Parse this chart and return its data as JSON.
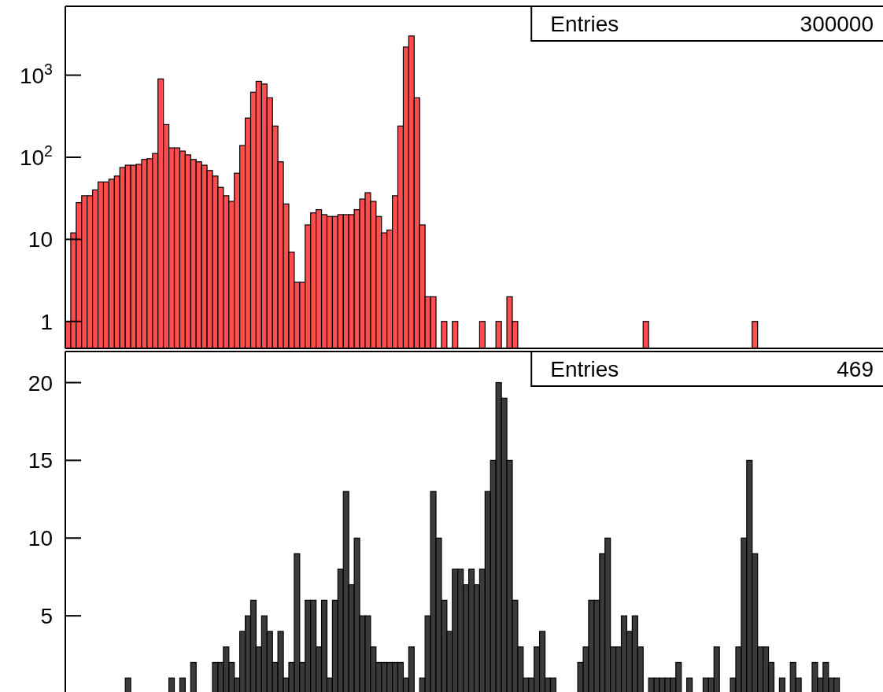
{
  "chart_data": [
    {
      "type": "bar",
      "log": "y",
      "tick_labels": "y",
      "color": "#ff4d4d",
      "categories": [
        null,
        null,
        null,
        null,
        null,
        null,
        null,
        null,
        null,
        null,
        null,
        null,
        null,
        null,
        null,
        null,
        null,
        null,
        null,
        null,
        null,
        null,
        null,
        null,
        null,
        null,
        null,
        null,
        null,
        null,
        null,
        null,
        null,
        null,
        null,
        null,
        null,
        null,
        null,
        null,
        null,
        null,
        null,
        null,
        null,
        null,
        null,
        null,
        null,
        null,
        null,
        null,
        null,
        null,
        null,
        null,
        null,
        null,
        null,
        null,
        null,
        null,
        null,
        null,
        null,
        null,
        null,
        null,
        null,
        null,
        null,
        null,
        null,
        null,
        null,
        null,
        null,
        null,
        null,
        null,
        null,
        null,
        null,
        null,
        null,
        null,
        null,
        null,
        null,
        null,
        null,
        null,
        null,
        null,
        null,
        null,
        null,
        null,
        null,
        null,
        null,
        null,
        null,
        null,
        null,
        null,
        null,
        null,
        null,
        null,
        null,
        null,
        null,
        null,
        null,
        null,
        null,
        null,
        null,
        null,
        null,
        null,
        null,
        null,
        null,
        null,
        null,
        null,
        null,
        null,
        null,
        null,
        null,
        null,
        null,
        null,
        null,
        null,
        null,
        null,
        null,
        null,
        null,
        null,
        null,
        null,
        null,
        null,
        null,
        null
      ],
      "values": [
        1,
        12,
        28,
        34,
        34,
        40,
        50,
        50,
        54,
        59,
        75,
        80,
        80,
        82,
        94,
        96,
        111,
        900,
        250,
        130,
        130,
        119,
        107,
        94,
        88,
        80,
        69,
        59,
        43,
        34,
        29,
        64,
        139,
        300,
        620,
        840,
        780,
        530,
        240,
        88,
        27,
        7,
        3,
        3,
        15,
        21,
        23,
        20,
        19,
        19,
        20,
        20,
        20,
        23,
        31,
        37,
        29,
        19,
        12,
        13,
        34,
        240,
        2200,
        3000,
        530,
        15,
        2,
        2,
        null,
        1,
        null,
        1,
        null,
        null,
        null,
        null,
        1,
        null,
        null,
        1,
        null,
        2,
        1,
        null,
        null,
        null,
        null,
        null,
        null,
        null,
        null,
        null,
        null,
        null,
        null,
        null,
        null,
        null,
        null,
        null,
        null,
        null,
        null,
        null,
        null,
        null,
        1,
        null,
        null,
        null,
        null,
        null,
        null,
        null,
        null,
        null,
        null,
        null,
        null,
        null,
        null,
        null,
        null,
        null,
        null,
        null,
        1,
        null,
        null,
        null,
        null,
        null,
        null,
        null,
        null,
        null,
        null,
        null,
        null,
        null,
        null,
        null,
        null,
        null,
        null,
        null,
        null,
        null,
        null,
        null
      ],
      "ylim": [
        0.47,
        6900
      ],
      "yticks": [
        1,
        10,
        {
          "value": 100,
          "label": "10$^{2}$"
        },
        {
          "value": 1000,
          "label": "10$^{3}$"
        }
      ],
      "annotations": [
        "Entries",
        "300000"
      ]
    },
    {
      "type": "bar",
      "tick_labels": "y",
      "color": "#3a3a3a",
      "categories": [
        null,
        null,
        null,
        null,
        null,
        null,
        null,
        null,
        null,
        null,
        null,
        null,
        null,
        null,
        null,
        null,
        null,
        null,
        null,
        null,
        null,
        null,
        null,
        null,
        null,
        null,
        null,
        null,
        null,
        null,
        null,
        null,
        null,
        null,
        null,
        null,
        null,
        null,
        null,
        null,
        null,
        null,
        null,
        null,
        null,
        null,
        null,
        null,
        null,
        null,
        null,
        null,
        null,
        null,
        null,
        null,
        null,
        null,
        null,
        null,
        null,
        null,
        null,
        null,
        null,
        null,
        null,
        null,
        null,
        null,
        null,
        null,
        null,
        null,
        null,
        null,
        null,
        null,
        null,
        null,
        null,
        null,
        null,
        null,
        null,
        null,
        null,
        null,
        null,
        null,
        null,
        null,
        null,
        null,
        null,
        null,
        null,
        null,
        null,
        null,
        null,
        null,
        null,
        null,
        null,
        null,
        null,
        null,
        null,
        null,
        null,
        null,
        null,
        null,
        null,
        null,
        null,
        null,
        null,
        null,
        null,
        null,
        null,
        null,
        null,
        null,
        null,
        null,
        null,
        null,
        null,
        null,
        null,
        null,
        null,
        null,
        null,
        null,
        null,
        null,
        null,
        null,
        null,
        null,
        null,
        null,
        null,
        null,
        null,
        null
      ],
      "values": [
        0,
        0,
        0,
        0,
        0,
        0,
        0,
        0,
        0,
        0,
        0,
        1,
        0,
        0,
        0,
        0,
        0,
        0,
        0,
        1,
        0,
        1,
        0,
        2,
        0,
        0,
        0,
        2,
        2,
        3,
        2,
        1,
        4,
        5,
        6,
        3,
        5,
        4,
        2,
        4,
        1,
        2,
        9,
        2,
        6,
        6,
        3,
        6,
        1,
        6,
        8,
        13,
        7,
        10,
        5,
        5,
        3,
        2,
        2,
        2,
        2,
        2,
        1,
        3,
        0,
        1,
        5,
        13,
        10,
        6,
        4,
        8,
        8,
        7,
        8,
        7,
        8,
        13,
        15,
        20,
        19,
        15,
        6,
        3,
        1,
        1,
        3,
        4,
        1,
        1,
        0,
        0,
        0,
        0,
        2,
        3,
        6,
        6,
        9,
        10,
        3,
        3,
        5,
        4,
        5,
        3,
        0,
        1,
        1,
        1,
        1,
        1,
        2,
        0,
        1,
        0,
        0,
        1,
        1,
        3,
        0,
        0,
        1,
        3,
        10,
        15,
        9,
        3,
        3,
        2,
        0,
        1,
        0,
        2,
        1,
        0,
        0,
        2,
        1,
        2,
        1,
        1,
        0,
        0,
        0,
        0,
        0,
        0,
        0,
        0
      ],
      "ylim": [
        0,
        22
      ],
      "yticks": [
        5,
        10,
        15,
        20
      ],
      "annotations": [
        "Entries",
        "469"
      ]
    }
  ]
}
